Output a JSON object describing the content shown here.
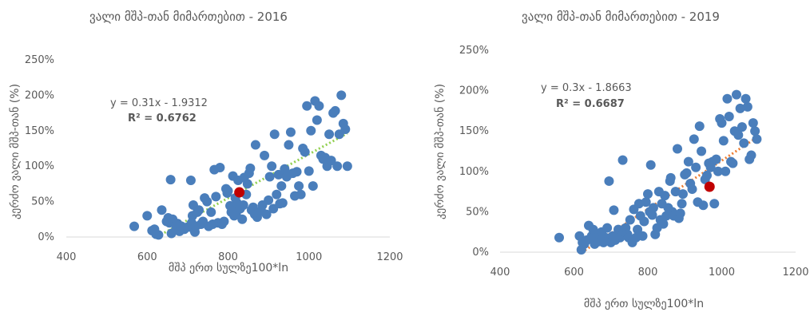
{
  "chart_data": [
    {
      "type": "scatter",
      "title": "ვალი მშპ-თან მიმართებით - 2016",
      "xlabel": "მშპ ერთ სულზე100*ln",
      "ylabel": "კერძო ვალი მშპ-თან (%)",
      "xlim": [
        400,
        1200
      ],
      "ylim": [
        0,
        250
      ],
      "x_ticks": [
        "400",
        "600",
        "800",
        "1000",
        "1200"
      ],
      "y_ticks": [
        "0%",
        "50%",
        "100%",
        "150%",
        "200%",
        "250%"
      ],
      "equation": "y = 0.31x - 1.9312",
      "r2": "R² = 0.6762",
      "trend": {
        "slope": 0.31,
        "intercept": -193.12,
        "x_from": 625,
        "x_to": 1095,
        "color": "#92d050"
      },
      "point_color": "#4a7ebb",
      "highlight_color": "#c00000",
      "highlight": [
        828,
        63
      ],
      "points": [
        [
          568,
          15
        ],
        [
          600,
          30
        ],
        [
          612,
          9
        ],
        [
          618,
          11
        ],
        [
          622,
          4
        ],
        [
          628,
          3
        ],
        [
          636,
          38
        ],
        [
          648,
          22
        ],
        [
          652,
          27
        ],
        [
          655,
          20
        ],
        [
          658,
          81
        ],
        [
          660,
          5
        ],
        [
          663,
          25
        ],
        [
          672,
          12
        ],
        [
          675,
          19
        ],
        [
          680,
          8
        ],
        [
          685,
          15
        ],
        [
          692,
          11
        ],
        [
          700,
          14
        ],
        [
          708,
          80
        ],
        [
          710,
          20
        ],
        [
          712,
          30
        ],
        [
          714,
          45
        ],
        [
          716,
          10
        ],
        [
          718,
          7
        ],
        [
          720,
          15
        ],
        [
          724,
          35
        ],
        [
          728,
          38
        ],
        [
          733,
          18
        ],
        [
          738,
          22
        ],
        [
          742,
          55
        ],
        [
          748,
          50
        ],
        [
          752,
          15
        ],
        [
          758,
          35
        ],
        [
          762,
          18
        ],
        [
          766,
          95
        ],
        [
          770,
          57
        ],
        [
          775,
          20
        ],
        [
          780,
          98
        ],
        [
          785,
          18
        ],
        [
          790,
          22
        ],
        [
          795,
          68
        ],
        [
          798,
          62
        ],
        [
          800,
          65
        ],
        [
          805,
          44
        ],
        [
          808,
          35
        ],
        [
          810,
          40
        ],
        [
          812,
          86
        ],
        [
          815,
          30
        ],
        [
          818,
          55
        ],
        [
          820,
          33
        ],
        [
          822,
          48
        ],
        [
          825,
          80
        ],
        [
          830,
          40
        ],
        [
          835,
          25
        ],
        [
          838,
          45
        ],
        [
          840,
          84
        ],
        [
          845,
          60
        ],
        [
          848,
          75
        ],
        [
          852,
          90
        ],
        [
          855,
          97
        ],
        [
          858,
          38
        ],
        [
          862,
          42
        ],
        [
          866,
          32
        ],
        [
          868,
          130
        ],
        [
          872,
          28
        ],
        [
          876,
          35
        ],
        [
          882,
          37
        ],
        [
          885,
          45
        ],
        [
          890,
          115
        ],
        [
          895,
          32
        ],
        [
          900,
          52
        ],
        [
          903,
          85
        ],
        [
          908,
          100
        ],
        [
          912,
          40
        ],
        [
          915,
          145
        ],
        [
          920,
          60
        ],
        [
          925,
          88
        ],
        [
          928,
          47
        ],
        [
          932,
          72
        ],
        [
          935,
          48
        ],
        [
          940,
          96
        ],
        [
          945,
          85
        ],
        [
          950,
          130
        ],
        [
          955,
          148
        ],
        [
          960,
          90
        ],
        [
          965,
          58
        ],
        [
          970,
          92
        ],
        [
          975,
          72
        ],
        [
          980,
          60
        ],
        [
          985,
          125
        ],
        [
          990,
          120
        ],
        [
          995,
          185
        ],
        [
          1000,
          93
        ],
        [
          1005,
          150
        ],
        [
          1010,
          72
        ],
        [
          1015,
          192
        ],
        [
          1020,
          165
        ],
        [
          1025,
          185
        ],
        [
          1030,
          115
        ],
        [
          1035,
          110
        ],
        [
          1040,
          112
        ],
        [
          1045,
          100
        ],
        [
          1050,
          145
        ],
        [
          1055,
          108
        ],
        [
          1060,
          175
        ],
        [
          1065,
          178
        ],
        [
          1070,
          100
        ],
        [
          1075,
          145
        ],
        [
          1080,
          200
        ],
        [
          1085,
          160
        ],
        [
          1090,
          152
        ],
        [
          1095,
          100
        ]
      ]
    },
    {
      "type": "scatter",
      "title": "ვალი მშპ-თან მიმართებით - 2019",
      "xlabel": "მშპ ერთ სულზე100*ln",
      "ylabel": "კერძო ვალი მშპ-თან (%)",
      "xlim": [
        400,
        1200
      ],
      "ylim": [
        0,
        250
      ],
      "x_ticks": [
        "400",
        "600",
        "800",
        "1000",
        "1200"
      ],
      "y_ticks": [
        "0%",
        "50%",
        "100%",
        "150%",
        "200%",
        "250%"
      ],
      "equation": "y = 0.3x - 1.8663",
      "r2": "R² = 0.6687",
      "trend": {
        "slope": 0.3,
        "intercept": -186.63,
        "x_from": 630,
        "x_to": 1095,
        "color": "#ed7d31"
      },
      "point_color": "#4a7ebb",
      "highlight_color": "#c00000",
      "highlight": [
        967,
        81
      ],
      "points": [
        [
          560,
          18
        ],
        [
          615,
          20
        ],
        [
          620,
          3
        ],
        [
          623,
          12
        ],
        [
          628,
          10
        ],
        [
          635,
          15
        ],
        [
          640,
          33
        ],
        [
          648,
          20
        ],
        [
          652,
          28
        ],
        [
          656,
          10
        ],
        [
          660,
          18
        ],
        [
          665,
          13
        ],
        [
          670,
          22
        ],
        [
          675,
          25
        ],
        [
          680,
          12
        ],
        [
          685,
          18
        ],
        [
          690,
          30
        ],
        [
          695,
          88
        ],
        [
          700,
          12
        ],
        [
          705,
          20
        ],
        [
          708,
          52
        ],
        [
          712,
          15
        ],
        [
          716,
          20
        ],
        [
          720,
          28
        ],
        [
          725,
          18
        ],
        [
          728,
          20
        ],
        [
          732,
          114
        ],
        [
          735,
          25
        ],
        [
          740,
          30
        ],
        [
          745,
          22
        ],
        [
          748,
          18
        ],
        [
          752,
          40
        ],
        [
          758,
          12
        ],
        [
          762,
          53
        ],
        [
          768,
          18
        ],
        [
          772,
          28
        ],
        [
          776,
          60
        ],
        [
          780,
          45
        ],
        [
          786,
          20
        ],
        [
          790,
          38
        ],
        [
          795,
          62
        ],
        [
          800,
          72
        ],
        [
          805,
          50
        ],
        [
          808,
          108
        ],
        [
          812,
          46
        ],
        [
          815,
          55
        ],
        [
          820,
          22
        ],
        [
          825,
          30
        ],
        [
          830,
          75
        ],
        [
          834,
          40
        ],
        [
          838,
          60
        ],
        [
          842,
          35
        ],
        [
          846,
          70
        ],
        [
          850,
          45
        ],
        [
          855,
          55
        ],
        [
          860,
          88
        ],
        [
          862,
          92
        ],
        [
          866,
          50
        ],
        [
          870,
          45
        ],
        [
          875,
          75
        ],
        [
          880,
          128
        ],
        [
          884,
          42
        ],
        [
          888,
          48
        ],
        [
          892,
          60
        ],
        [
          895,
          72
        ],
        [
          900,
          96
        ],
        [
          905,
          98
        ],
        [
          910,
          112
        ],
        [
          915,
          85
        ],
        [
          920,
          78
        ],
        [
          925,
          140
        ],
        [
          930,
          105
        ],
        [
          935,
          62
        ],
        [
          940,
          156
        ],
        [
          945,
          125
        ],
        [
          950,
          58
        ],
        [
          955,
          90
        ],
        [
          960,
          95
        ],
        [
          965,
          110
        ],
        [
          970,
          105
        ],
        [
          975,
          112
        ],
        [
          980,
          60
        ],
        [
          985,
          115
        ],
        [
          990,
          100
        ],
        [
          995,
          165
        ],
        [
          1000,
          160
        ],
        [
          1005,
          138
        ],
        [
          1010,
          100
        ],
        [
          1015,
          190
        ],
        [
          1020,
          168
        ],
        [
          1025,
          112
        ],
        [
          1030,
          110
        ],
        [
          1035,
          150
        ],
        [
          1040,
          195
        ],
        [
          1045,
          145
        ],
        [
          1050,
          178
        ],
        [
          1055,
          155
        ],
        [
          1060,
          135
        ],
        [
          1065,
          190
        ],
        [
          1070,
          180
        ],
        [
          1075,
          115
        ],
        [
          1080,
          120
        ],
        [
          1085,
          160
        ],
        [
          1090,
          150
        ],
        [
          1095,
          140
        ]
      ]
    }
  ]
}
